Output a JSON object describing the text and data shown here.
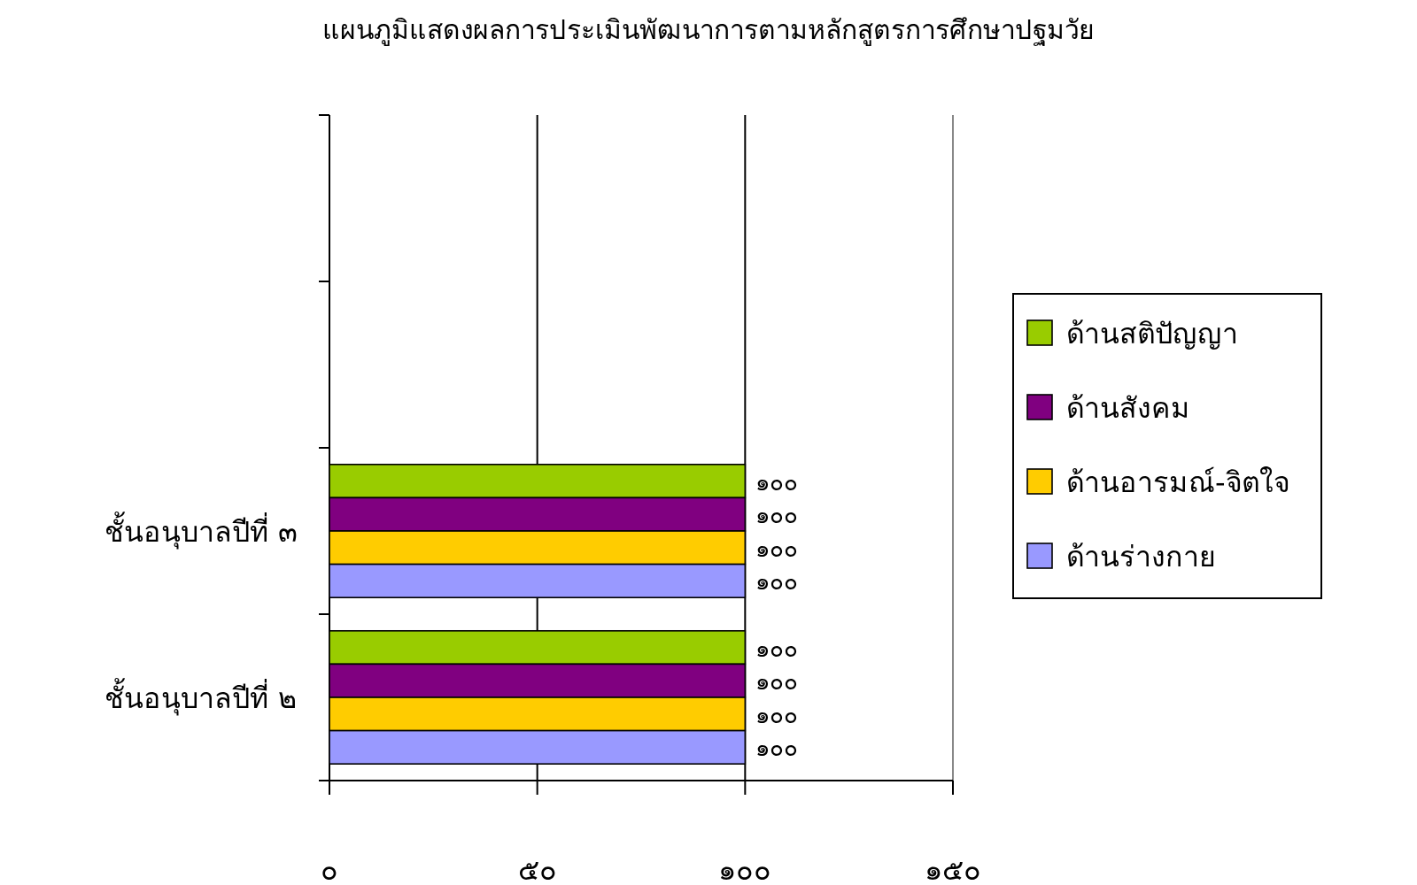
{
  "chart_data": {
    "type": "bar",
    "orientation": "horizontal",
    "title": "แผนภูมิแสดงผลการประเมินพัฒนาการตามหลักสูตรการศึกษาปฐมวัย",
    "categories": [
      null,
      null,
      "ชั้นอนุบาลปีที่ ๓",
      "ชั้นอนุบาลปีที่ ๒"
    ],
    "series": [
      {
        "name": "ด้านสติปัญญา",
        "color": "#99cc00",
        "values": [
          null,
          null,
          100,
          100
        ],
        "value_labels": [
          null,
          null,
          "๑๐๐",
          "๑๐๐"
        ]
      },
      {
        "name": "ด้านสังคม",
        "color": "#800080",
        "values": [
          null,
          null,
          100,
          100
        ],
        "value_labels": [
          null,
          null,
          "๑๐๐",
          "๑๐๐"
        ]
      },
      {
        "name": "ด้านอารมณ์-จิตใจ",
        "color": "#ffcc00",
        "values": [
          null,
          null,
          100,
          100
        ],
        "value_labels": [
          null,
          null,
          "๑๐๐",
          "๑๐๐"
        ]
      },
      {
        "name": "ด้านร่างกาย",
        "color": "#9999ff",
        "values": [
          null,
          null,
          100,
          100
        ],
        "value_labels": [
          null,
          null,
          "๑๐๐",
          "๑๐๐"
        ]
      }
    ],
    "xlim": [
      0,
      150
    ],
    "xticks": [
      {
        "value": 0,
        "label": "๐"
      },
      {
        "value": 50,
        "label": "๕๐"
      },
      {
        "value": 100,
        "label": "๑๐๐"
      },
      {
        "value": 150,
        "label": "๑๕๐"
      }
    ],
    "grid": "x",
    "legend": "right"
  }
}
